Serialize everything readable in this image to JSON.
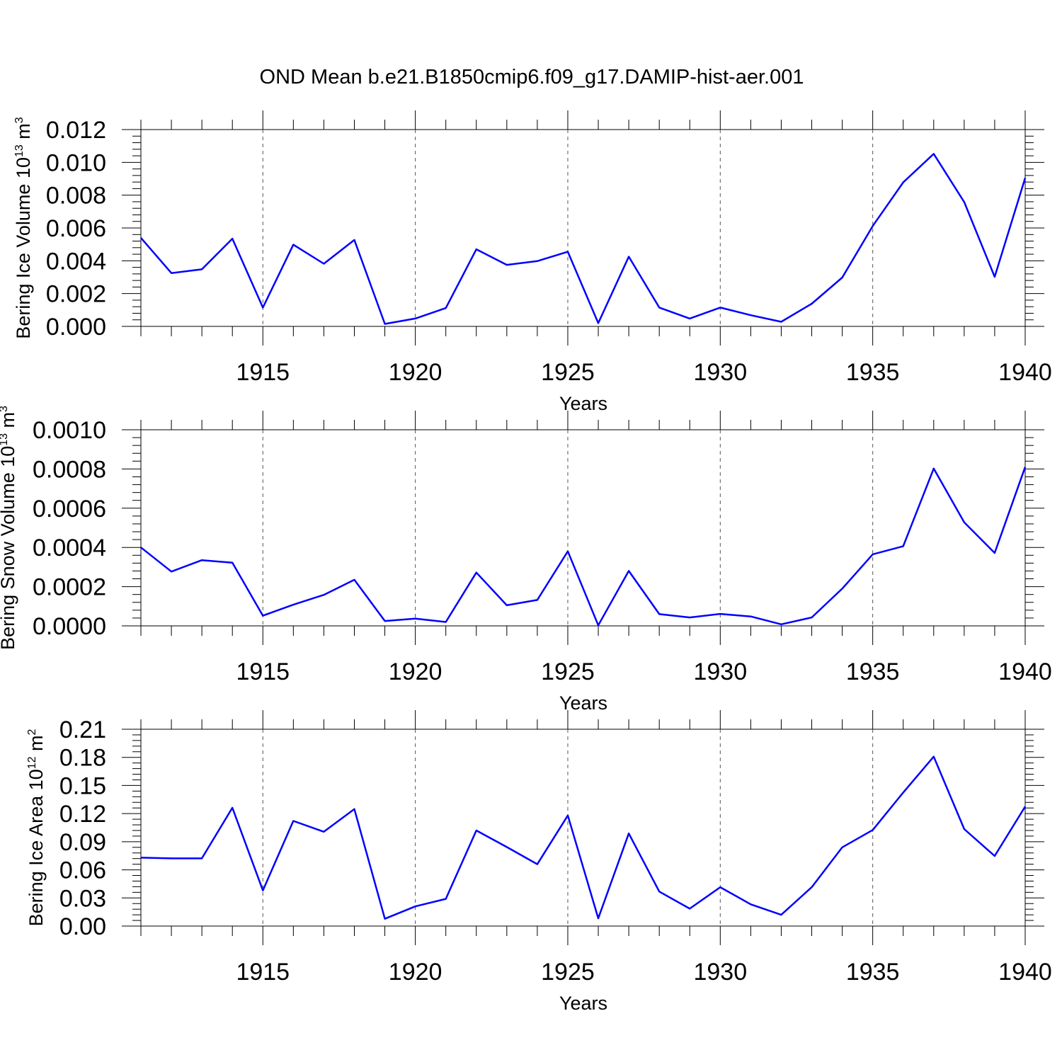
{
  "title": "OND Mean b.e21.B1850cmip6.f09_g17.DAMIP-hist-aer.001",
  "chart_data": [
    {
      "type": "line",
      "name": "ice-volume",
      "ylabel": {
        "base": "Bering Ice Volume 10",
        "exp": "13",
        "unit": " m",
        "unit_exp": "3"
      },
      "xlabel": "Years",
      "xlim": [
        1911,
        1940
      ],
      "ylim": [
        0,
        0.012
      ],
      "yticks": [
        "0.000",
        "0.002",
        "0.004",
        "0.006",
        "0.008",
        "0.010",
        "0.012"
      ],
      "ytick_values": [
        0,
        0.002,
        0.004,
        0.006,
        0.008,
        0.01,
        0.012
      ],
      "xticks": [
        "1915",
        "1920",
        "1925",
        "1930",
        "1935",
        "1940"
      ],
      "xtick_values": [
        1915,
        1920,
        1925,
        1930,
        1935,
        1940
      ],
      "grid": "dashed vertical at major x ticks",
      "line_color": "#0000ff",
      "x": [
        1911,
        1912,
        1913,
        1914,
        1915,
        1916,
        1917,
        1918,
        1919,
        1920,
        1921,
        1922,
        1923,
        1924,
        1925,
        1926,
        1927,
        1928,
        1929,
        1930,
        1931,
        1932,
        1933,
        1934,
        1935,
        1936,
        1937,
        1938,
        1939,
        1940
      ],
      "values": [
        0.0054,
        0.00325,
        0.00348,
        0.00535,
        0.00115,
        0.00498,
        0.00382,
        0.00527,
        0.00015,
        0.00048,
        0.00112,
        0.0047,
        0.00375,
        0.00398,
        0.00455,
        0.0002,
        0.00425,
        0.00115,
        0.00048,
        0.00115,
        0.00068,
        0.00028,
        0.00138,
        0.00298,
        0.00612,
        0.00878,
        0.01052,
        0.00758,
        0.00302,
        0.00905
      ]
    },
    {
      "type": "line",
      "name": "snow-volume",
      "ylabel": {
        "base": "Bering Snow Volume 10",
        "exp": "13",
        "unit": " m",
        "unit_exp": "3"
      },
      "xlabel": "Years",
      "xlim": [
        1911,
        1940
      ],
      "ylim": [
        0,
        0.001
      ],
      "yticks": [
        "0.0000",
        "0.0002",
        "0.0004",
        "0.0006",
        "0.0008",
        "0.0010"
      ],
      "ytick_values": [
        0,
        0.0002,
        0.0004,
        0.0006,
        0.0008,
        0.001
      ],
      "xticks": [
        "1915",
        "1920",
        "1925",
        "1930",
        "1935",
        "1940"
      ],
      "xtick_values": [
        1915,
        1920,
        1925,
        1930,
        1935,
        1940
      ],
      "grid": "dashed vertical at major x ticks",
      "line_color": "#0000ff",
      "x": [
        1911,
        1912,
        1913,
        1914,
        1915,
        1916,
        1917,
        1918,
        1919,
        1920,
        1921,
        1922,
        1923,
        1924,
        1925,
        1926,
        1927,
        1928,
        1929,
        1930,
        1931,
        1932,
        1933,
        1934,
        1935,
        1936,
        1937,
        1938,
        1939,
        1940
      ],
      "values": [
        0.0004,
        0.000277,
        0.000335,
        0.000322,
        5.2e-05,
        0.000108,
        0.000158,
        0.000235,
        2.5e-05,
        3.7e-05,
        2e-05,
        0.000272,
        0.000105,
        0.000132,
        0.00038,
        3e-06,
        0.00028,
        6e-05,
        4.3e-05,
        6.1e-05,
        4.8e-05,
        8e-06,
        4.3e-05,
        0.00019,
        0.000365,
        0.000406,
        0.000802,
        0.000528,
        0.000372,
        0.00081
      ]
    },
    {
      "type": "line",
      "name": "ice-area",
      "ylabel": {
        "base": "Bering Ice Area 10",
        "exp": "12",
        "unit": " m",
        "unit_exp": "2"
      },
      "xlabel": "Years",
      "xlim": [
        1911,
        1940
      ],
      "ylim": [
        0,
        0.21
      ],
      "yticks": [
        "0.00",
        "0.03",
        "0.06",
        "0.09",
        "0.12",
        "0.15",
        "0.18",
        "0.21"
      ],
      "ytick_values": [
        0,
        0.03,
        0.06,
        0.09,
        0.12,
        0.15,
        0.18,
        0.21
      ],
      "xticks": [
        "1915",
        "1920",
        "1925",
        "1930",
        "1935",
        "1940"
      ],
      "xtick_values": [
        1915,
        1920,
        1925,
        1930,
        1935,
        1940
      ],
      "grid": "dashed vertical at major x ticks",
      "line_color": "#0000ff",
      "x": [
        1911,
        1912,
        1913,
        1914,
        1915,
        1916,
        1917,
        1918,
        1919,
        1920,
        1921,
        1922,
        1923,
        1924,
        1925,
        1926,
        1927,
        1928,
        1929,
        1930,
        1931,
        1932,
        1933,
        1934,
        1935,
        1936,
        1937,
        1938,
        1939,
        1940
      ],
      "values": [
        0.073,
        0.0722,
        0.0722,
        0.1262,
        0.038,
        0.1122,
        0.1006,
        0.1248,
        0.0078,
        0.021,
        0.029,
        0.102,
        0.0843,
        0.066,
        0.118,
        0.0082,
        0.0988,
        0.0368,
        0.0186,
        0.0415,
        0.0232,
        0.012,
        0.0415,
        0.084,
        0.1025,
        0.1425,
        0.1808,
        0.1035,
        0.0748,
        0.1275
      ]
    }
  ]
}
